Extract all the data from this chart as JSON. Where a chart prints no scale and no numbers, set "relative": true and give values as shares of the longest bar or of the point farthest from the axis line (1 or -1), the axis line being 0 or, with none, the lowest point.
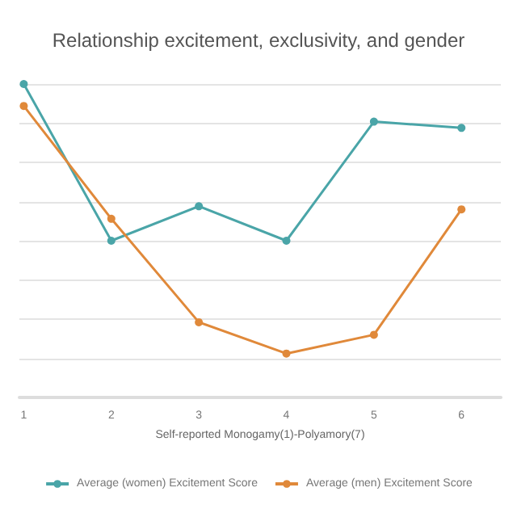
{
  "chart_data": {
    "type": "line",
    "title": "Relationship excitement, exclusivity, and gender",
    "xlabel": "Self-reported Monogamy(1)-Polyamory(7)",
    "x": [
      1,
      2,
      3,
      4,
      5,
      6
    ],
    "xlim": [
      0.95,
      6.45
    ],
    "xticks": [
      1,
      2,
      3,
      4,
      5,
      6
    ],
    "relative": true,
    "grid": "y",
    "legend": "bottom",
    "marker": "circle",
    "series": [
      {
        "name": "Average (women) Excitement Score",
        "color": "#4aa5a8",
        "values": [
          1,
          0.5,
          0.61,
          0.5,
          0.88,
          0.86
        ]
      },
      {
        "name": "Average (men) Excitement Score",
        "color": "#e0893a",
        "values": [
          0.93,
          0.57,
          0.24,
          0.14,
          0.2,
          0.6
        ]
      }
    ]
  }
}
